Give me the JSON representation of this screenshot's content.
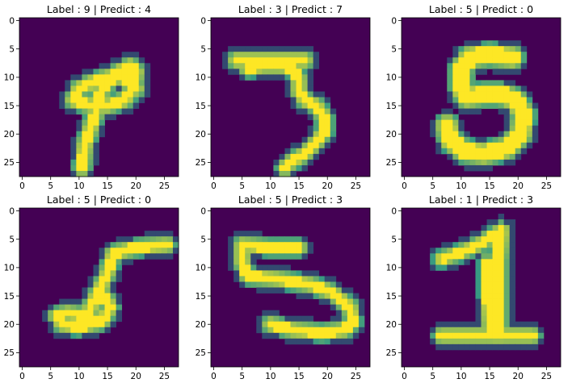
{
  "figure": {
    "colormap": {
      "low": "#440154",
      "mid": "#21918c",
      "high": "#fde725"
    },
    "axis_color": "#000000"
  },
  "chart_data": [
    {
      "type": "heatmap",
      "title": "Label : 9 | Predict : 4",
      "xlim": [
        -0.5,
        27.5
      ],
      "ylim": [
        27.5,
        -0.5
      ],
      "xticks": [
        0,
        5,
        10,
        15,
        20,
        25
      ],
      "yticks": [
        0,
        5,
        10,
        15,
        20,
        25
      ],
      "grid": false,
      "strokes": [
        {
          "points": [
            [
              10.5,
              26
            ],
            [
              11,
              22
            ],
            [
              12,
              19
            ],
            [
              13,
              16
            ],
            [
              13.5,
              13
            ],
            [
              15,
              11
            ],
            [
              17,
              9
            ],
            [
              19,
              8
            ],
            [
              20,
              9
            ],
            [
              19.5,
              12
            ],
            [
              18,
              14
            ],
            [
              15,
              15
            ],
            [
              12,
              15
            ],
            [
              9,
              14
            ],
            [
              10,
              12
            ],
            [
              12,
              11
            ],
            [
              15,
              10
            ],
            [
              18,
              10
            ],
            [
              20,
              12
            ]
          ],
          "width": 1.6
        }
      ]
    },
    {
      "type": "heatmap",
      "title": "Label : 3 | Predict : 7",
      "xlim": [
        -0.5,
        27.5
      ],
      "ylim": [
        27.5,
        -0.5
      ],
      "xticks": [
        0,
        5,
        10,
        15,
        20,
        25
      ],
      "yticks": [
        0,
        5,
        10,
        15,
        20,
        25
      ],
      "grid": false,
      "strokes": [
        {
          "points": [
            [
              4,
              7
            ],
            [
              8,
              7
            ],
            [
              12,
              7
            ],
            [
              16,
              7
            ]
          ],
          "width": 1.6
        },
        {
          "points": [
            [
              6,
              8.5
            ],
            [
              9,
              8
            ],
            [
              12,
              8
            ],
            [
              14,
              8.5
            ],
            [
              15,
              10.5
            ],
            [
              15,
              12.5
            ],
            [
              16,
              14
            ],
            [
              18,
              15
            ],
            [
              19.5,
              17
            ],
            [
              19.5,
              19.5
            ],
            [
              18,
              21.5
            ],
            [
              16,
              23.5
            ],
            [
              13.5,
              25
            ],
            [
              12.5,
              26
            ]
          ],
          "width": 1.5
        }
      ]
    },
    {
      "type": "heatmap",
      "title": "Label : 5 | Predict : 0",
      "xlim": [
        -0.5,
        27.5
      ],
      "ylim": [
        27.5,
        -0.5
      ],
      "xticks": [
        0,
        5,
        10,
        15,
        20,
        25
      ],
      "yticks": [
        0,
        5,
        10,
        15,
        20,
        25
      ],
      "grid": false,
      "strokes": [
        {
          "points": [
            [
              19,
              6.5
            ],
            [
              15,
              6
            ],
            [
              11.5,
              6.5
            ],
            [
              10,
              8.5
            ],
            [
              10,
              12
            ],
            [
              11,
              13.5
            ],
            [
              14,
              13
            ],
            [
              17,
              13
            ],
            [
              19.5,
              14
            ],
            [
              21,
              16.5
            ],
            [
              20.5,
              20
            ],
            [
              18,
              22.5
            ],
            [
              14,
              23.5
            ],
            [
              10.5,
              23
            ],
            [
              8,
              21
            ],
            [
              7.5,
              18.5
            ]
          ],
          "width": 2.6
        }
      ]
    },
    {
      "type": "heatmap",
      "title": "Label : 5 | Predict : 0",
      "xlim": [
        -0.5,
        27.5
      ],
      "ylim": [
        27.5,
        -0.5
      ],
      "xticks": [
        0,
        5,
        10,
        15,
        20,
        25
      ],
      "yticks": [
        0,
        5,
        10,
        15,
        20,
        25
      ],
      "grid": false,
      "strokes": [
        {
          "points": [
            [
              25.5,
              6
            ],
            [
              20,
              6.5
            ],
            [
              16,
              7.5
            ]
          ],
          "width": 1.5
        },
        {
          "points": [
            [
              16,
              7.5
            ],
            [
              15,
              11
            ],
            [
              13.5,
              14
            ],
            [
              12,
              17
            ],
            [
              11,
              19.5
            ]
          ],
          "width": 1.5
        },
        {
          "points": [
            [
              11,
              19.5
            ],
            [
              12.5,
              16
            ],
            [
              14.5,
              15
            ],
            [
              15.5,
              17
            ],
            [
              14,
              19.5
            ],
            [
              10,
              20.5
            ],
            [
              7,
              20
            ],
            [
              6,
              18.5
            ],
            [
              8,
              18
            ],
            [
              11,
              18.5
            ],
            [
              14,
              19.5
            ]
          ],
          "width": 1.5
        }
      ]
    },
    {
      "type": "heatmap",
      "title": "Label : 5 | Predict : 3",
      "xlim": [
        -0.5,
        27.5
      ],
      "ylim": [
        27.5,
        -0.5
      ],
      "xticks": [
        0,
        5,
        10,
        15,
        20,
        25
      ],
      "yticks": [
        0,
        5,
        10,
        15,
        20,
        25
      ],
      "grid": false,
      "strokes": [
        {
          "points": [
            [
              15,
              6.5
            ],
            [
              10,
              6.5
            ],
            [
              5,
              6
            ]
          ],
          "width": 1.5
        },
        {
          "points": [
            [
              5,
              6
            ],
            [
              5,
              9
            ],
            [
              6,
              11.5
            ]
          ],
          "width": 1.5
        },
        {
          "points": [
            [
              6,
              11.5
            ],
            [
              11,
              12
            ],
            [
              17,
              13
            ],
            [
              21,
              14.5
            ],
            [
              24,
              17
            ],
            [
              24.5,
              19.5
            ],
            [
              23,
              21
            ],
            [
              19,
              21.5
            ],
            [
              14,
              21
            ],
            [
              10,
              20
            ]
          ],
          "width": 1.5
        }
      ]
    },
    {
      "type": "heatmap",
      "title": "Label : 1 | Predict : 3",
      "xlim": [
        -0.5,
        27.5
      ],
      "ylim": [
        27.5,
        -0.5
      ],
      "xticks": [
        0,
        5,
        10,
        15,
        20,
        25
      ],
      "yticks": [
        0,
        5,
        10,
        15,
        20,
        25
      ],
      "grid": false,
      "strokes": [
        {
          "points": [
            [
              17,
              3.5
            ],
            [
              16.5,
              9
            ],
            [
              16.5,
              15
            ],
            [
              16.5,
              22
            ]
          ],
          "width": 1.8
        },
        {
          "points": [
            [
              17,
              3.5
            ],
            [
              13,
              6
            ],
            [
              9.5,
              7.5
            ],
            [
              6.5,
              8.5
            ]
          ],
          "width": 1.4
        },
        {
          "points": [
            [
              14.5,
              9
            ],
            [
              14.5,
              15
            ],
            [
              15,
              21
            ]
          ],
          "width": 1.2
        },
        {
          "points": [
            [
              6.5,
              22
            ],
            [
              12,
              22
            ],
            [
              17,
              22
            ],
            [
              22.5,
              22
            ]
          ],
          "width": 1.5
        }
      ]
    }
  ]
}
